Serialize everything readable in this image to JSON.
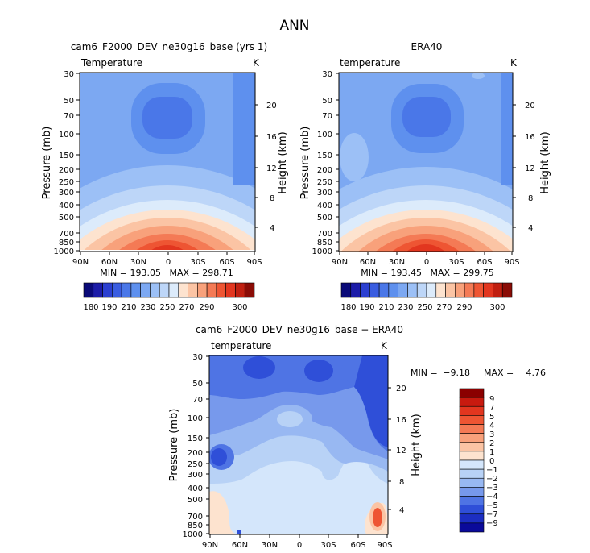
{
  "figure": {
    "title": "ANN"
  },
  "chart_data": [
    {
      "type": "heatmap",
      "title": "cam6_F2000_DEV_ne30g16_base (yrs 1)",
      "variable": "Temperature",
      "units": "K",
      "xlabel": "",
      "ylabel": "Pressure (mb)",
      "y2label": "Height (km)",
      "x_ticks": [
        "90N",
        "60N",
        "30N",
        "0",
        "30S",
        "60S",
        "90S"
      ],
      "y_ticks": [
        30,
        50,
        70,
        100,
        150,
        200,
        250,
        300,
        400,
        500,
        700,
        850,
        1000
      ],
      "y2_ticks": [
        20,
        16,
        12,
        8,
        4
      ],
      "ylim": [
        30,
        1000
      ],
      "stats": "MIN = 193.05   MAX = 298.71",
      "colorbar_labels": [
        "180",
        "190",
        "210",
        "230",
        "250",
        "270",
        "290",
        "300"
      ]
    },
    {
      "type": "heatmap",
      "title": "ERA40",
      "variable": "temperature",
      "units": "K",
      "xlabel": "",
      "ylabel": "Pressure (mb)",
      "y2label": "Height (km)",
      "x_ticks": [
        "90N",
        "60N",
        "30N",
        "0",
        "30S",
        "60S",
        "90S"
      ],
      "y_ticks": [
        30,
        50,
        70,
        100,
        150,
        200,
        250,
        300,
        400,
        500,
        700,
        850,
        1000
      ],
      "y2_ticks": [
        20,
        16,
        12,
        8,
        4
      ],
      "ylim": [
        30,
        1000
      ],
      "stats": "MIN = 193.45   MAX = 299.75",
      "colorbar_labels": [
        "180",
        "190",
        "210",
        "230",
        "250",
        "270",
        "290",
        "300"
      ]
    },
    {
      "type": "heatmap",
      "title": "cam6_F2000_DEV_ne30g16_base − ERA40",
      "variable": "temperature",
      "units": "K",
      "xlabel": "",
      "ylabel": "Pressure (mb)",
      "y2label": "Height (km)",
      "x_ticks": [
        "90N",
        "60N",
        "30N",
        "0",
        "30S",
        "60S",
        "90S"
      ],
      "y_ticks": [
        30,
        50,
        70,
        100,
        150,
        200,
        250,
        300,
        400,
        500,
        700,
        850,
        1000
      ],
      "y2_ticks": [
        20,
        16,
        12,
        8,
        4
      ],
      "ylim": [
        30,
        1000
      ],
      "min_label": "MIN =",
      "min_value": "−9.18",
      "max_label": "MAX =",
      "max_value": "4.76",
      "colorbar_labels": [
        "9",
        "7",
        "5",
        "4",
        "3",
        "2",
        "1",
        "0",
        "−1",
        "−2",
        "−3",
        "−4",
        "−5",
        "−7",
        "−9"
      ]
    }
  ],
  "colors": {
    "abs_scale": [
      "#0a0a78",
      "#1c1ca8",
      "#2b3fd0",
      "#3a5de0",
      "#4a77e8",
      "#5e90ee",
      "#7ca8f2",
      "#9cc0f6",
      "#bdd6f8",
      "#dcebfb",
      "#fde3cf",
      "#fbc4a4",
      "#f8a17b",
      "#f47a55",
      "#ee5533",
      "#e2361f",
      "#c01f10",
      "#8a0c06"
    ],
    "diff_scale": [
      "#8b0000",
      "#c81a0f",
      "#e2361f",
      "#ee5533",
      "#f47a55",
      "#f8a17b",
      "#fbc4a4",
      "#fde3cf",
      "#d4e6fb",
      "#b8d2f6",
      "#98b8f2",
      "#7799ec",
      "#4f74e4",
      "#2f4fd8",
      "#1c2ec2",
      "#0a0a9a"
    ]
  }
}
